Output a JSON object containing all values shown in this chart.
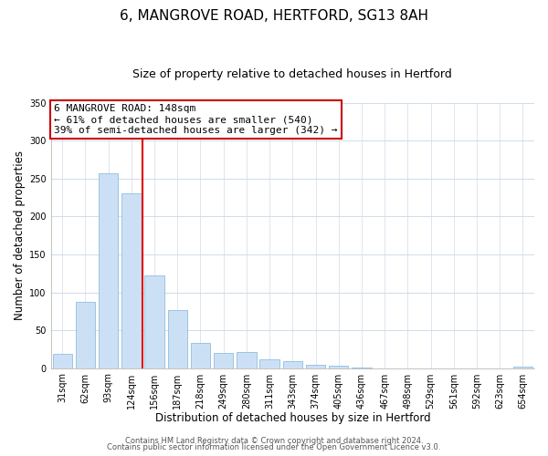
{
  "title": "6, MANGROVE ROAD, HERTFORD, SG13 8AH",
  "subtitle": "Size of property relative to detached houses in Hertford",
  "xlabel": "Distribution of detached houses by size in Hertford",
  "ylabel": "Number of detached properties",
  "bar_labels": [
    "31sqm",
    "62sqm",
    "93sqm",
    "124sqm",
    "156sqm",
    "187sqm",
    "218sqm",
    "249sqm",
    "280sqm",
    "311sqm",
    "343sqm",
    "374sqm",
    "405sqm",
    "436sqm",
    "467sqm",
    "498sqm",
    "529sqm",
    "561sqm",
    "592sqm",
    "623sqm",
    "654sqm"
  ],
  "bar_values": [
    19,
    87,
    257,
    231,
    122,
    77,
    33,
    20,
    21,
    11,
    9,
    4,
    3,
    1,
    0,
    0,
    0,
    0,
    0,
    0,
    2
  ],
  "bar_color": "#cce0f5",
  "bar_edge_color": "#7fb3d9",
  "vline_index": 4,
  "vline_color": "#dd0000",
  "ylim": [
    0,
    350
  ],
  "yticks": [
    0,
    50,
    100,
    150,
    200,
    250,
    300,
    350
  ],
  "annotation_title": "6 MANGROVE ROAD: 148sqm",
  "annotation_line1": "← 61% of detached houses are smaller (540)",
  "annotation_line2": "39% of semi-detached houses are larger (342) →",
  "annotation_box_color": "#ffffff",
  "annotation_box_edge": "#cc0000",
  "footer1": "Contains HM Land Registry data © Crown copyright and database right 2024.",
  "footer2": "Contains public sector information licensed under the Open Government Licence v3.0.",
  "bg_color": "#ffffff",
  "grid_color": "#d0dce8",
  "title_fontsize": 11,
  "subtitle_fontsize": 9,
  "tick_fontsize": 7,
  "label_fontsize": 8.5,
  "annotation_fontsize": 8,
  "footer_fontsize": 6
}
